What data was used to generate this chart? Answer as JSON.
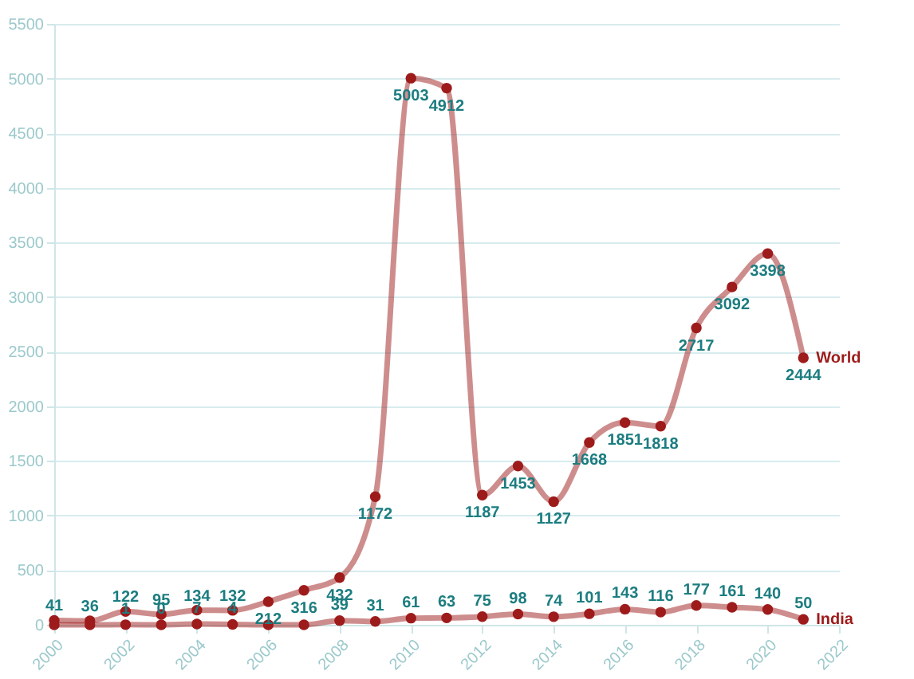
{
  "chart_data": {
    "type": "line",
    "x": [
      2000,
      2001,
      2002,
      2003,
      2004,
      2005,
      2006,
      2007,
      2008,
      2009,
      2010,
      2011,
      2012,
      2013,
      2014,
      2015,
      2016,
      2017,
      2018,
      2019,
      2020,
      2021
    ],
    "series": [
      {
        "name": "World",
        "color": "#9e1b1b",
        "values": [
          41,
          36,
          122,
          95,
          134,
          132,
          212,
          316,
          432,
          1172,
          5003,
          4912,
          1187,
          1453,
          1127,
          1668,
          1851,
          1818,
          2717,
          3092,
          3398,
          2444
        ]
      },
      {
        "name": "India",
        "color": "#9e1b1b",
        "values": [
          0,
          0,
          1,
          0,
          7,
          4,
          0,
          0,
          39,
          31,
          61,
          63,
          75,
          98,
          74,
          101,
          143,
          116,
          177,
          161,
          140,
          50
        ],
        "value_labels": [
          null,
          null,
          "1",
          "0",
          "7",
          "4",
          null,
          null,
          "39",
          "31",
          "61",
          "63",
          "75",
          "98",
          "74",
          "101",
          "143",
          "116",
          "177",
          "161",
          "140",
          "50"
        ]
      }
    ],
    "data_labels": true,
    "xlim": [
      2000,
      2022
    ],
    "xticks": [
      2000,
      2002,
      2004,
      2006,
      2008,
      2010,
      2012,
      2014,
      2016,
      2018,
      2020,
      2022
    ],
    "ylim": [
      0,
      5500
    ],
    "yticks": [
      0,
      500,
      1000,
      1500,
      2000,
      2500,
      3000,
      3500,
      4000,
      4500,
      5000,
      5500
    ],
    "grid": "y",
    "marker": "circle",
    "line_style": "solid",
    "legend": false
  }
}
